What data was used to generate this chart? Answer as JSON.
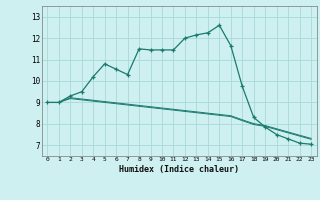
{
  "title": "",
  "xlabel": "Humidex (Indice chaleur)",
  "x_values": [
    0,
    1,
    2,
    3,
    4,
    5,
    6,
    7,
    8,
    9,
    10,
    11,
    12,
    13,
    14,
    15,
    16,
    17,
    18,
    19,
    20,
    21,
    22,
    23
  ],
  "main_line": [
    9.0,
    9.0,
    9.3,
    9.5,
    10.2,
    10.8,
    10.55,
    10.3,
    11.5,
    11.45,
    11.45,
    11.45,
    12.0,
    12.15,
    12.25,
    12.6,
    11.65,
    9.75,
    8.3,
    7.85,
    7.5,
    7.3,
    7.1,
    7.05
  ],
  "line1": [
    9.0,
    9.0,
    9.18,
    9.12,
    9.06,
    9.0,
    8.94,
    8.88,
    8.82,
    8.76,
    8.7,
    8.64,
    8.58,
    8.52,
    8.46,
    8.4,
    8.34,
    8.15,
    7.97,
    7.88,
    7.73,
    7.58,
    7.43,
    7.28
  ],
  "line2": [
    9.0,
    9.0,
    9.22,
    9.16,
    9.1,
    9.04,
    8.98,
    8.92,
    8.86,
    8.8,
    8.74,
    8.68,
    8.62,
    8.56,
    8.5,
    8.44,
    8.38,
    8.19,
    8.01,
    7.92,
    7.77,
    7.62,
    7.47,
    7.32
  ],
  "line_color": "#1a7a6e",
  "bg_color": "#cff0f0",
  "grid_color": "#a8d8d8",
  "ylim": [
    6.5,
    13.5
  ],
  "xlim": [
    -0.5,
    23.5
  ],
  "yticks": [
    7,
    8,
    9,
    10,
    11,
    12,
    13
  ],
  "xticks": [
    0,
    1,
    2,
    3,
    4,
    5,
    6,
    7,
    8,
    9,
    10,
    11,
    12,
    13,
    14,
    15,
    16,
    17,
    18,
    19,
    20,
    21,
    22,
    23
  ]
}
